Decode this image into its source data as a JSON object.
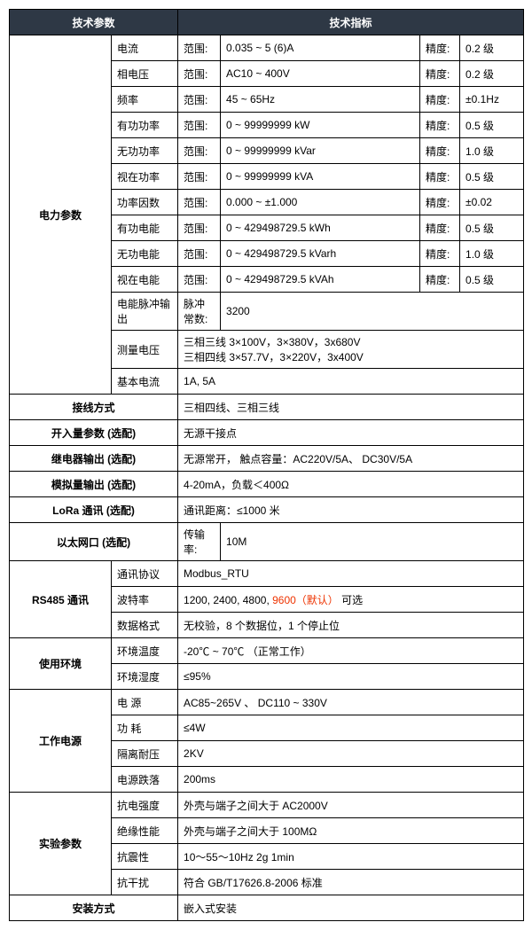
{
  "header": {
    "left": "技术参数",
    "right": "技术指标"
  },
  "labels": {
    "range": "范围:",
    "precision": "精度:",
    "pulse": "脉冲常数:",
    "rate": "传输率:"
  },
  "power": {
    "title": "电力参数",
    "rows": [
      {
        "name": "电流",
        "range": "0.035 ~ 5 (6)A",
        "prec": "0.2 级"
      },
      {
        "name": "相电压",
        "range": "AC10 ~ 400V",
        "prec": "0.2 级"
      },
      {
        "name": "频率",
        "range": "45 ~ 65Hz",
        "prec": "±0.1Hz"
      },
      {
        "name": "有功功率",
        "range": "0  ~  99999999 kW",
        "prec": "0.5 级"
      },
      {
        "name": "无功功率",
        "range": "0  ~  99999999 kVar",
        "prec": "1.0 级"
      },
      {
        "name": "视在功率",
        "range": "0  ~  99999999 kVA",
        "prec": "0.5 级"
      },
      {
        "name": "功率因数",
        "range": "0.000  ~  ±1.000",
        "prec": "±0.02"
      },
      {
        "name": "有功电能",
        "range": "0 ~ 429498729.5 kWh",
        "prec": "0.5 级"
      },
      {
        "name": "无功电能",
        "range": "0 ~ 429498729.5 kVarh",
        "prec": "1.0 级"
      },
      {
        "name": "视在电能",
        "range": "0 ~ 429498729.5 kVAh",
        "prec": "0.5 级"
      }
    ],
    "pulse": {
      "name": "电能脉冲输出",
      "val": "3200"
    },
    "volt": {
      "name": "测量电压",
      "l1": "三相三线 3×100V，3×380V，3x680V",
      "l2": "三相四线 3×57.7V，3×220V，3x400V"
    },
    "base": {
      "name": "基本电流",
      "val": "1A, 5A"
    }
  },
  "simple": [
    {
      "cat": "接线方式",
      "val": "三相四线、三相三线"
    },
    {
      "cat": "开入量参数  (选配)",
      "val": "无源干接点"
    },
    {
      "cat": "继电器输出  (选配)",
      "val": "无源常开，  触点容量：AC220V/5A、  DC30V/5A"
    },
    {
      "cat": "模拟量输出  (选配)",
      "val": "4-20mA，负载＜400Ω"
    },
    {
      "cat": "LoRa 通讯   (选配)",
      "val": "通讯距离：≤1000 米"
    }
  ],
  "eth": {
    "cat": "以太网口   (选配)",
    "val": "10M"
  },
  "rs485": {
    "title": "RS485 通讯",
    "rows": [
      {
        "name": "通讯协议",
        "val": "Modbus_RTU"
      },
      {
        "name": "波特率",
        "pre": "1200, 2400, 4800, ",
        "red": "9600（默认）",
        "post": "    可选"
      },
      {
        "name": "数据格式",
        "val": "无校验，8 个数据位，1 个停止位"
      }
    ]
  },
  "env": {
    "title": "使用环境",
    "rows": [
      {
        "name": "环境温度",
        "val": "-20℃   ~   70℃    （正常工作）"
      },
      {
        "name": "环境湿度",
        "val": "≤95%"
      }
    ]
  },
  "psu": {
    "title": "工作电源",
    "rows": [
      {
        "name": "电  源",
        "val": "AC85~265V 、 DC110 ~ 330V"
      },
      {
        "name": "功  耗",
        "val": "≤4W"
      },
      {
        "name": "隔离耐压",
        "val": "2KV"
      },
      {
        "name": "电源跌落",
        "val": "200ms"
      }
    ]
  },
  "exp": {
    "title": "实验参数",
    "rows": [
      {
        "name": "抗电强度",
        "val": "外壳与端子之间大于 AC2000V"
      },
      {
        "name": "绝缘性能",
        "val": "外壳与端子之间大于 100MΩ"
      },
      {
        "name": "抗震性",
        "val": "10～55～10Hz 2g   1min"
      },
      {
        "name": "抗干扰",
        "val": "符合 GB/T17626.8-2006 标准"
      }
    ]
  },
  "install": {
    "cat": "安装方式",
    "val": "嵌入式安装"
  }
}
